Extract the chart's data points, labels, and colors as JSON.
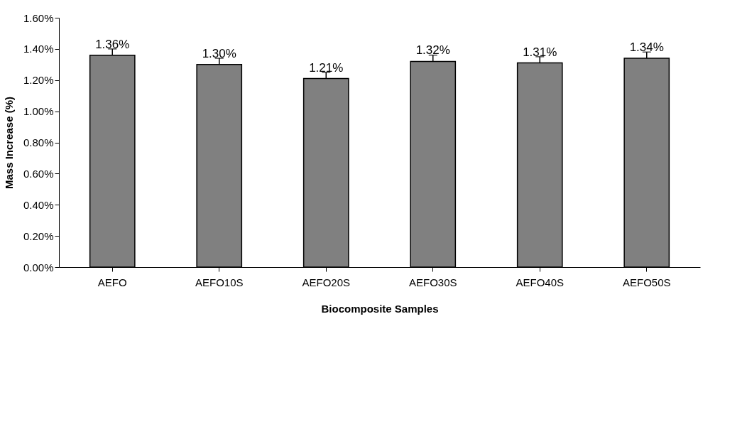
{
  "chart_data": {
    "type": "bar",
    "xlabel": "Biocomposite Samples",
    "ylabel": "Mass Increase (%)",
    "categories": [
      "AEFO",
      "AEFO10S",
      "AEFO20S",
      "AEFO30S",
      "AEFO40S",
      "AEFO50S"
    ],
    "values": [
      1.36,
      1.3,
      1.21,
      1.32,
      1.31,
      1.34
    ],
    "value_labels": [
      "1.36%",
      "1.30%",
      "1.21%",
      "1.32%",
      "1.31%",
      "1.34%"
    ],
    "errors": [
      [
        1.36,
        1.4
      ],
      [
        1.3,
        1.34
      ],
      [
        1.21,
        1.25
      ],
      [
        1.32,
        1.36
      ],
      [
        1.31,
        1.35
      ],
      [
        1.34,
        1.38
      ]
    ],
    "color": "#808080",
    "ylim": [
      0,
      1.6
    ],
    "yticks": [
      {
        "value": 0,
        "label": "0.00%"
      },
      {
        "value": 0.2,
        "label": "0.20%"
      },
      {
        "value": 0.4,
        "label": "0.40%"
      },
      {
        "value": 0.6,
        "label": "0.60%"
      },
      {
        "value": 0.8,
        "label": "0.80%"
      },
      {
        "value": 1.0,
        "label": "1.00%"
      },
      {
        "value": 1.2,
        "label": "1.20%"
      },
      {
        "value": 1.4,
        "label": "1.40%"
      },
      {
        "value": 1.6,
        "label": "1.60%"
      }
    ],
    "grid": false
  }
}
